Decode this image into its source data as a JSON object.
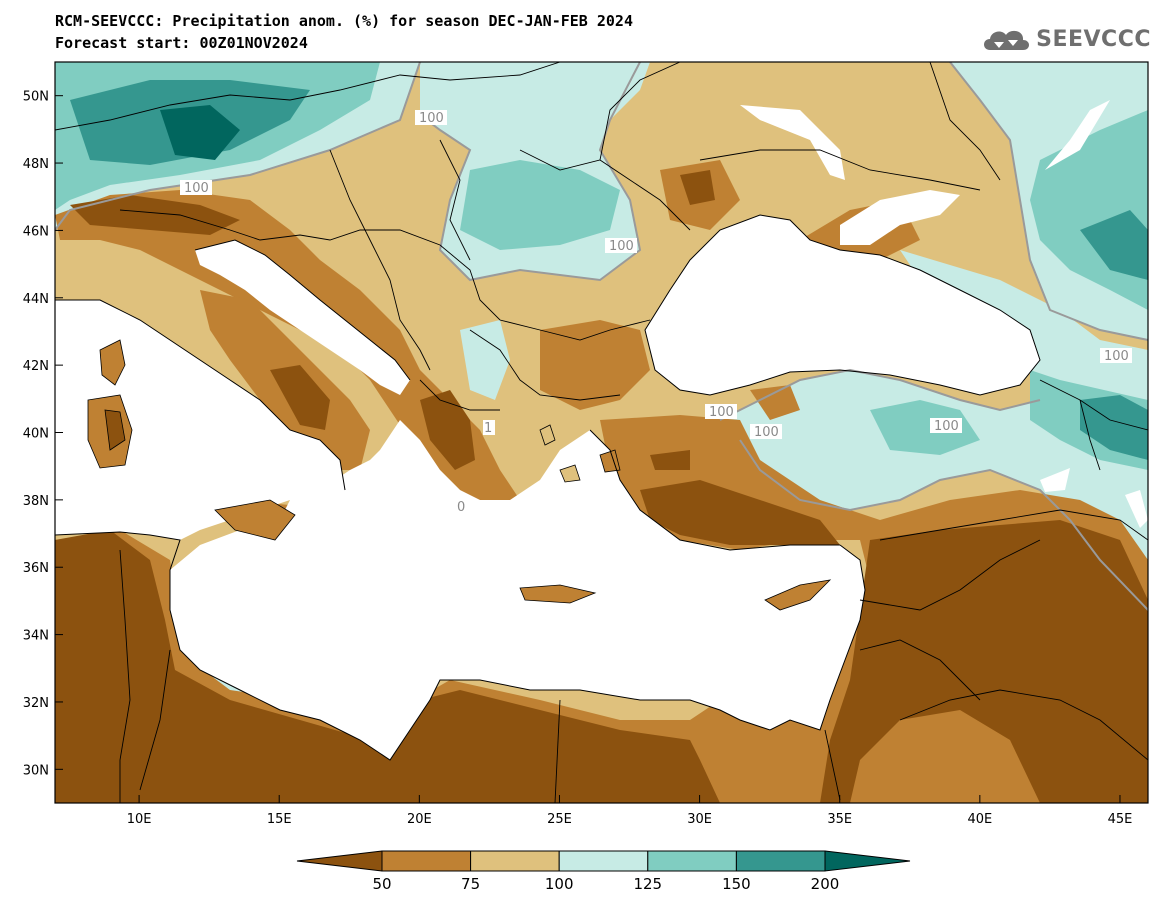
{
  "title_line1": "RCM-SEEVCCC: Precipitation anom. (%) for season DEC-JAN-FEB 2024",
  "title_line2": "Forecast start: 00Z01NOV2024",
  "logo": {
    "text": "SEEVCCC",
    "icon": "cloud-icon"
  },
  "map": {
    "lon_range": [
      7,
      46
    ],
    "lat_range": [
      29,
      51
    ],
    "lon_ticks": [
      "10E",
      "15E",
      "20E",
      "25E",
      "30E",
      "35E",
      "40E",
      "45E"
    ],
    "lat_ticks": [
      "50N",
      "48N",
      "46N",
      "44N",
      "42N",
      "40N",
      "38N",
      "36N",
      "34N",
      "32N",
      "30N"
    ],
    "contour_labels": [
      "100",
      "100",
      "100",
      "100",
      "100",
      "100",
      "100",
      "100",
      "1",
      "0"
    ]
  },
  "colorbar": {
    "colors": [
      "#8c520f",
      "#bf8133",
      "#dfc17d",
      "#c7ebe5",
      "#80cdc1",
      "#35978f",
      "#01665e"
    ],
    "labels": [
      "50",
      "75",
      "100",
      "125",
      "150",
      "200"
    ]
  },
  "colors": {
    "sea": "#ffffff",
    "border": "#000000",
    "contour_line": "#9a9a9a"
  }
}
